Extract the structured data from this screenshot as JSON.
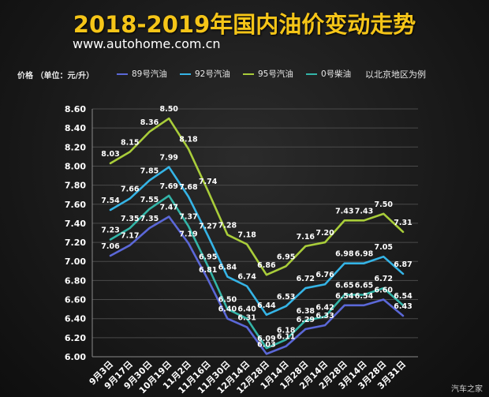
{
  "header": {
    "title": "2018-2019年国内油价变动走势",
    "subtitle": "www.autohome.com.cn",
    "ylabel": "价格 （单位：元/升）",
    "note": "以北京地区为例",
    "watermark": "汽车之家"
  },
  "colors": {
    "89": "#5b68d8",
    "92": "#35b4e6",
    "95": "#a9cd3a",
    "0": "#33b5a8",
    "title": "#f5c518"
  },
  "chart_data": {
    "type": "line",
    "title": "2018-2019年国内油价变动走势",
    "ylabel": "价格 （单位：元/升）",
    "xlabel": "",
    "ylim": [
      6.0,
      8.6
    ],
    "yticks": [
      "6.00",
      "6.20",
      "6.40",
      "6.60",
      "6.80",
      "7.00",
      "7.20",
      "7.40",
      "7.60",
      "7.80",
      "8.00",
      "8.20",
      "8.40",
      "8.60"
    ],
    "grid": true,
    "legend_position": "top",
    "categories": [
      "9月3日",
      "9月17日",
      "9月30日",
      "10月19日",
      "11月2日",
      "11月16日",
      "11月30日",
      "12月14日",
      "12月28日",
      "1月14日",
      "1月28日",
      "2月14日",
      "2月28日",
      "3月14日",
      "3月28日",
      "3月31日"
    ],
    "series": [
      {
        "name": "89号汽油",
        "color": "#5b68d8",
        "values": [
          7.06,
          7.17,
          7.35,
          7.47,
          7.19,
          6.81,
          6.4,
          6.31,
          6.03,
          6.11,
          6.29,
          6.33,
          6.54,
          6.54,
          6.6,
          6.43
        ],
        "labels": [
          "7.06",
          "7.17",
          "7.35",
          "7.47",
          "7.19",
          "6.81",
          "6.40",
          "6.31",
          "6.03",
          "6.11",
          "6.29",
          "6.33",
          "6.54",
          "6.54",
          "6.60",
          "6.43"
        ]
      },
      {
        "name": "92号汽油",
        "color": "#35b4e6",
        "values": [
          7.54,
          7.66,
          7.85,
          7.99,
          7.68,
          7.27,
          6.84,
          6.74,
          6.44,
          6.53,
          6.72,
          6.76,
          6.98,
          6.98,
          7.05,
          6.87
        ],
        "labels": [
          "7.54",
          "7.66",
          "7.85",
          "7.99",
          "7.68",
          "7.27",
          "6.84",
          "6.74",
          "6.44",
          "6.53",
          "6.72",
          "6.76",
          "6.98",
          "6.98",
          "7.05",
          "6.87"
        ]
      },
      {
        "name": "95号汽油",
        "color": "#a9cd3a",
        "values": [
          8.03,
          8.15,
          8.36,
          8.5,
          8.18,
          7.74,
          7.28,
          7.18,
          6.86,
          6.95,
          7.16,
          7.2,
          7.43,
          7.43,
          7.5,
          7.31
        ],
        "labels": [
          "8.03",
          "8.15",
          "8.36",
          "8.50",
          "8.18",
          "7.74",
          "7.28",
          "7.18",
          "6.86",
          "6.95",
          "7.16",
          "7.20",
          "7.43",
          "7.43",
          "7.50",
          "7.31"
        ]
      },
      {
        "name": "0号柴油",
        "color": "#33b5a8",
        "values": [
          7.23,
          7.35,
          7.55,
          7.69,
          7.37,
          6.95,
          6.5,
          6.4,
          6.09,
          6.18,
          6.38,
          6.42,
          6.65,
          6.65,
          6.72,
          6.54
        ],
        "labels": [
          "7.23",
          "7.35",
          "7.55",
          "7.69",
          "7.37",
          "6.95",
          "6.50",
          "6.40",
          "6.09",
          "6.18",
          "6.38",
          "6.42",
          "6.65",
          "6.65",
          "6.72",
          "6.54"
        ]
      }
    ]
  }
}
